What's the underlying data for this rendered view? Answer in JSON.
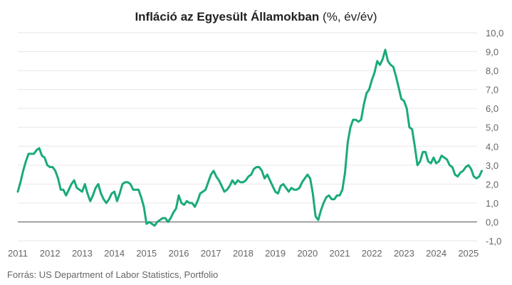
{
  "title": {
    "bold_part": "Infláció",
    "space": " ",
    "bold_part2": "az Egyesült Államokban",
    "normal_part": " (%, év/év)"
  },
  "source": "Forrás: US Department of Labor Statistics, Portfolio",
  "chart_data": {
    "type": "line",
    "title": "Infláció az Egyesült Államokban (%, év/év)",
    "xlabel": "",
    "ylabel": "",
    "ylim": [
      -1,
      10
    ],
    "y_ticks": [
      "10,0",
      "9,0",
      "8,0",
      "7,0",
      "6,0",
      "5,0",
      "4,0",
      "3,0",
      "2,0",
      "1,0",
      "0,0",
      "-1,0"
    ],
    "x_ticks": [
      "2011",
      "2012",
      "2013",
      "2014",
      "2015",
      "2016",
      "2017",
      "2018",
      "2019",
      "2020",
      "2021",
      "2022",
      "2023",
      "2024",
      "2025"
    ],
    "grid": "horizontal",
    "line_color": "#1aaa7a",
    "x_start": "2011-01",
    "frequency": "monthly",
    "series": [
      {
        "values": [
          1.6,
          2.1,
          2.7,
          3.2,
          3.6,
          3.6,
          3.6,
          3.8,
          3.9,
          3.5,
          3.4,
          3.0,
          2.9,
          2.9,
          2.7,
          2.3,
          1.7,
          1.7,
          1.4,
          1.7,
          2.0,
          2.2,
          1.8,
          1.7,
          1.6,
          2.0,
          1.5,
          1.1,
          1.4,
          1.8,
          2.0,
          1.5,
          1.2,
          1.0,
          1.2,
          1.5,
          1.6,
          1.1,
          1.5,
          2.0,
          2.1,
          2.1,
          2.0,
          1.7,
          1.7,
          1.7,
          1.3,
          0.8,
          -0.1,
          0.0,
          -0.1,
          -0.2,
          0.0,
          0.1,
          0.2,
          0.2,
          0.0,
          0.2,
          0.5,
          0.7,
          1.4,
          1.0,
          0.9,
          1.1,
          1.0,
          1.0,
          0.8,
          1.1,
          1.5,
          1.6,
          1.7,
          2.1,
          2.5,
          2.7,
          2.4,
          2.2,
          1.9,
          1.6,
          1.7,
          1.9,
          2.2,
          2.0,
          2.2,
          2.1,
          2.1,
          2.2,
          2.4,
          2.5,
          2.8,
          2.9,
          2.9,
          2.7,
          2.3,
          2.5,
          2.2,
          1.9,
          1.6,
          1.5,
          1.9,
          2.0,
          1.8,
          1.6,
          1.8,
          1.7,
          1.7,
          1.8,
          2.1,
          2.3,
          2.5,
          2.3,
          1.5,
          0.3,
          0.1,
          0.6,
          1.0,
          1.3,
          1.4,
          1.2,
          1.2,
          1.4,
          1.4,
          1.7,
          2.6,
          4.2,
          5.0,
          5.4,
          5.4,
          5.3,
          5.4,
          6.2,
          6.8,
          7.0,
          7.5,
          7.9,
          8.5,
          8.3,
          8.6,
          9.1,
          8.5,
          8.3,
          8.2,
          7.7,
          7.1,
          6.5,
          6.4,
          6.0,
          5.0,
          4.9,
          4.0,
          3.0,
          3.2,
          3.7,
          3.7,
          3.2,
          3.1,
          3.4,
          3.1,
          3.2,
          3.5,
          3.4,
          3.3,
          3.0,
          2.9,
          2.5,
          2.4,
          2.6,
          2.7,
          2.9,
          3.0,
          2.8,
          2.4,
          2.3,
          2.4,
          2.7
        ]
      }
    ]
  }
}
